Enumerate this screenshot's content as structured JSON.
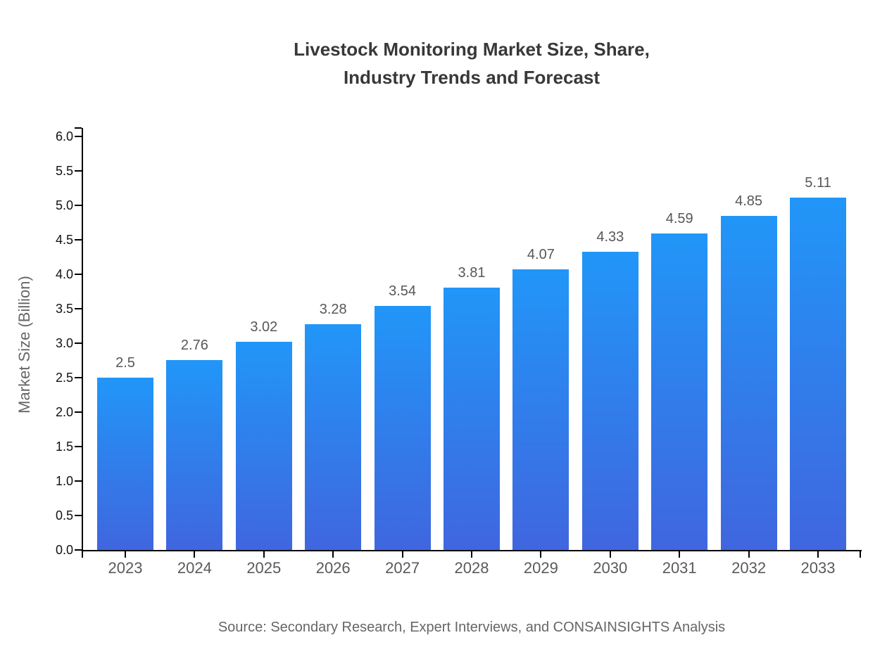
{
  "title": {
    "line1": "Livestock Monitoring Market Size, Share,",
    "line2": "Industry Trends and Forecast"
  },
  "source": "Source: Secondary Research, Expert Interviews, and CONSAINSIGHTS Analysis",
  "chart_data": {
    "type": "bar",
    "title": "Livestock Monitoring Market Size, Share, Industry Trends and Forecast",
    "categories": [
      "2023",
      "2024",
      "2025",
      "2026",
      "2027",
      "2028",
      "2029",
      "2030",
      "2031",
      "2032",
      "2033"
    ],
    "values": [
      2.5,
      2.76,
      3.02,
      3.28,
      3.54,
      3.81,
      4.07,
      4.33,
      4.59,
      4.85,
      5.11
    ],
    "value_labels": [
      "2.5",
      "2.76",
      "3.02",
      "3.28",
      "3.54",
      "3.81",
      "4.07",
      "4.33",
      "4.59",
      "4.85",
      "5.11"
    ],
    "xlabel": "",
    "ylabel": "Market Size (Billion)",
    "ylim": [
      0,
      6
    ],
    "ytick_step": 0.5,
    "ytick_labels": [
      "0.0",
      "0.5",
      "1.0",
      "1.5",
      "2.0",
      "2.5",
      "3.0",
      "3.5",
      "4.0",
      "4.5",
      "5.0",
      "5.5",
      "6.0"
    ],
    "grid": false,
    "legend_position": "none",
    "bar_color_top": "#2196f8",
    "bar_color_bottom": "#4066df",
    "axis_color": "#000000",
    "value_label_color": "#575757",
    "category_label_color": "#5a5a5a",
    "ytick_label_color": "#111111",
    "title_color": "#383838",
    "source_color": "#666666"
  }
}
